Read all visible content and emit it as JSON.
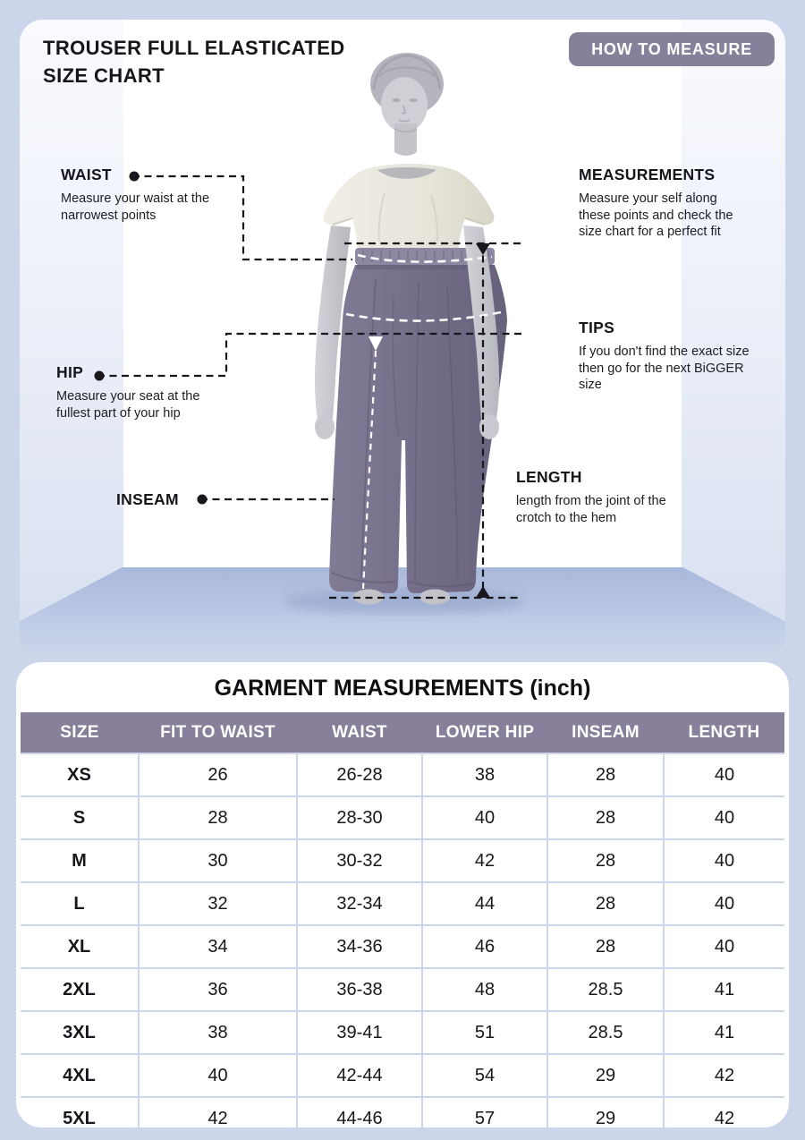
{
  "colors": {
    "background": "#ccd6ea",
    "card": "#ffffff",
    "accent_purple": "#88809a",
    "table_border": "#cdd7eb",
    "trousers": "#756f89",
    "floor": "#a8b8db",
    "text": "#15151a"
  },
  "header": {
    "title_line1": "TROUSER FULL ELASTICATED",
    "title_line2": "SIZE CHART",
    "badge_label": "HOW TO MEASURE"
  },
  "callouts": {
    "waist_label": "WAIST",
    "waist_desc": "Measure your waist at the narrowest points",
    "hip_label": "HIP",
    "hip_desc": "Measure your seat at the fullest part of your hip",
    "inseam_label": "INSEAM",
    "measurements_label": "MEASUREMENTS",
    "measurements_desc": "Measure your self along these points and check the size chart for a perfect fit",
    "tips_label": "TIPS",
    "tips_desc": "If you don't find the exact size then go for the next BiGGER size",
    "length_label": "LENGTH",
    "length_desc": "length from the joint of the crotch to the hem"
  },
  "table": {
    "title": "GARMENT MEASUREMENTS (inch)",
    "columns": [
      "SIZE",
      "FIT TO WAIST",
      "WAIST",
      "LOWER HIP",
      "INSEAM",
      "LENGTH"
    ],
    "rows": [
      [
        "XS",
        "26",
        "26-28",
        "38",
        "28",
        "40"
      ],
      [
        "S",
        "28",
        "28-30",
        "40",
        "28",
        "40"
      ],
      [
        "M",
        "30",
        "30-32",
        "42",
        "28",
        "40"
      ],
      [
        "L",
        "32",
        "32-34",
        "44",
        "28",
        "40"
      ],
      [
        "XL",
        "34",
        "34-36",
        "46",
        "28",
        "40"
      ],
      [
        "2XL",
        "36",
        "36-38",
        "48",
        "28.5",
        "41"
      ],
      [
        "3XL",
        "38",
        "39-41",
        "51",
        "28.5",
        "41"
      ],
      [
        "4XL",
        "40",
        "42-44",
        "54",
        "29",
        "42"
      ],
      [
        "5XL",
        "42",
        "44-46",
        "57",
        "29",
        "42"
      ]
    ]
  }
}
